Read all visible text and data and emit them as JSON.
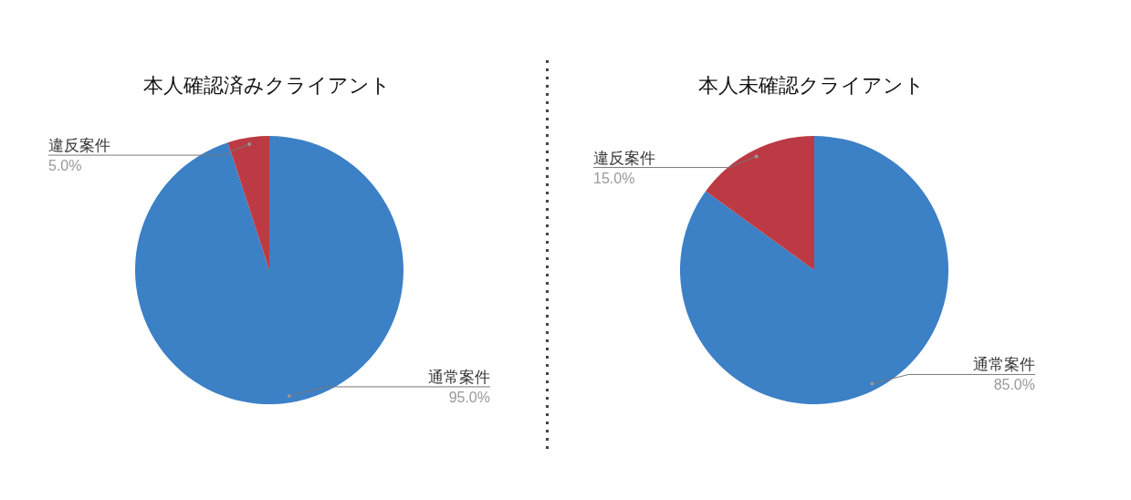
{
  "chart_data": [
    {
      "type": "pie",
      "title": "本人確認済みクライアント",
      "categories": [
        "通常案件",
        "違反案件"
      ],
      "values": [
        95,
        5
      ],
      "colors": [
        "#3c80c6",
        "#bb3a44"
      ],
      "value_labels": [
        "95.0%",
        "5.0%"
      ]
    },
    {
      "type": "pie",
      "title": "本人未確認クライアント",
      "categories": [
        "通常案件",
        "違反案件"
      ],
      "values": [
        85,
        15
      ],
      "colors": [
        "#3c80c6",
        "#bb3a44"
      ],
      "value_labels": [
        "85.0%",
        "15.0%"
      ]
    }
  ]
}
